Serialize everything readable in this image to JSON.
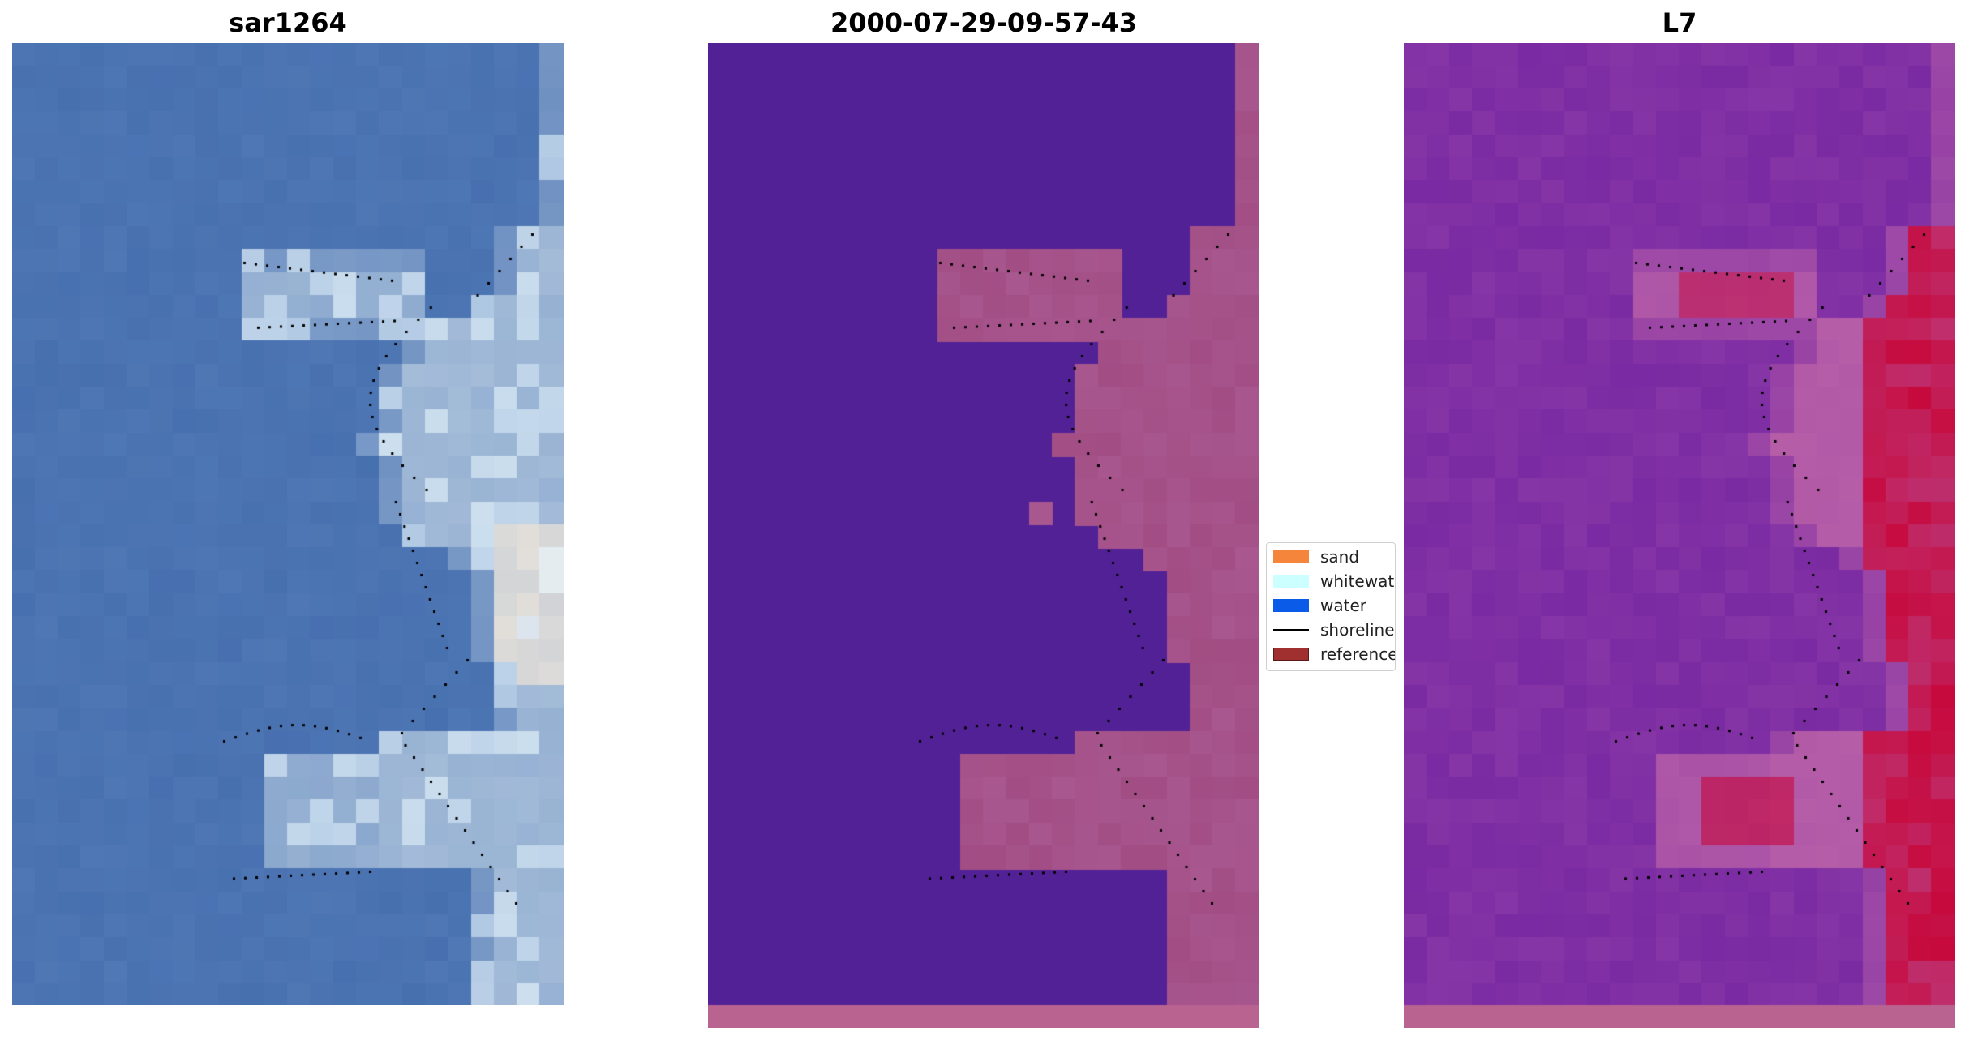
{
  "panels": [
    {
      "title": "sar1264"
    },
    {
      "title": "2000-07-29-09-57-43"
    },
    {
      "title": "L7"
    }
  ],
  "legend": {
    "items": [
      {
        "label": "sand",
        "color": "#f4853a",
        "kind": "patch"
      },
      {
        "label": "whitewater",
        "color": "#ccffff",
        "kind": "patch"
      },
      {
        "label": "water",
        "color": "#0a5ce8",
        "kind": "patch"
      },
      {
        "label": "shoreline",
        "color": "#000000",
        "kind": "line"
      },
      {
        "label": "reference",
        "color": "#a03030",
        "kind": "patch"
      }
    ]
  },
  "colors": {
    "classified_background": "#522196",
    "classified_land": "#a8578f",
    "classified_bottom_strip": "#b96391",
    "index_background": "#7a2aa2",
    "index_high": "#c90030",
    "rgb_water": "#4a72b0",
    "rgb_whitewater": "#eaf8ff",
    "shoreline": "#000000"
  }
}
